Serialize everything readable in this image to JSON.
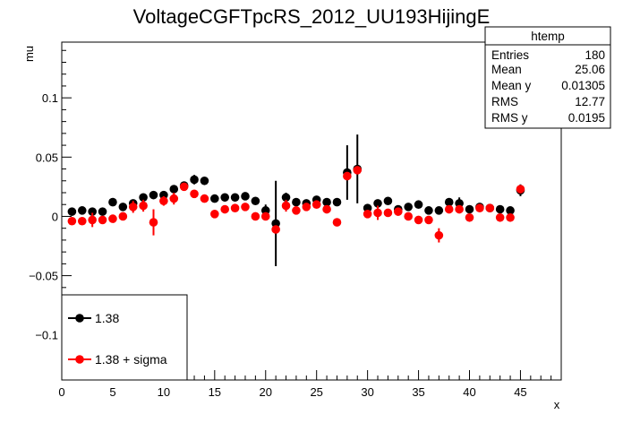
{
  "chart_data": {
    "type": "scatter",
    "title": "VoltageCGFTpcRS_2012_UU193HijingE",
    "xlabel": "x",
    "ylabel": "mu",
    "xlim": [
      0,
      49
    ],
    "ylim": [
      -0.138,
      0.147
    ],
    "x_ticks": [
      0,
      5,
      10,
      15,
      20,
      25,
      30,
      35,
      40,
      45
    ],
    "x_tick_labels": [
      "0",
      "5",
      "10",
      "15",
      "20",
      "25",
      "30",
      "35",
      "40",
      "45"
    ],
    "y_ticks": [
      -0.1,
      -0.05,
      0,
      0.05,
      0.1
    ],
    "y_tick_labels": [
      "−0.1",
      "−0.05",
      "0",
      "0.05",
      "0.1"
    ],
    "grid": false,
    "legend_position": "bottom-left",
    "series": [
      {
        "name": "1.38",
        "color": "#000000",
        "x": [
          1,
          2,
          3,
          4,
          5,
          6,
          7,
          8,
          9,
          10,
          11,
          12,
          13,
          14,
          15,
          16,
          17,
          18,
          19,
          20,
          21,
          22,
          23,
          24,
          25,
          26,
          27,
          28,
          29,
          30,
          31,
          32,
          33,
          34,
          35,
          36,
          37,
          38,
          39,
          40,
          41,
          42,
          43,
          44,
          45
        ],
        "y": [
          0.004,
          0.005,
          0.004,
          0.004,
          0.012,
          0.008,
          0.011,
          0.016,
          0.018,
          0.018,
          0.023,
          0.026,
          0.031,
          0.03,
          0.015,
          0.016,
          0.016,
          0.017,
          0.013,
          0.005,
          -0.006,
          0.016,
          0.012,
          0.011,
          0.014,
          0.012,
          0.012,
          0.037,
          0.04,
          0.007,
          0.011,
          0.013,
          0.006,
          0.008,
          0.01,
          0.005,
          0.005,
          0.012,
          0.011,
          0.006,
          0.008,
          0.007,
          0.006,
          0.005,
          0.022
        ],
        "err": [
          0.003,
          0.003,
          0.003,
          0.003,
          0.003,
          0.003,
          0.003,
          0.003,
          0.003,
          0.003,
          0.003,
          0.003,
          0.004,
          0.003,
          0.003,
          0.003,
          0.003,
          0.003,
          0.003,
          0.005,
          0.036,
          0.004,
          0.003,
          0.003,
          0.003,
          0.003,
          0.003,
          0.023,
          0.029,
          0.003,
          0.003,
          0.003,
          0.003,
          0.003,
          0.003,
          0.003,
          0.003,
          0.003,
          0.005,
          0.003,
          0.003,
          0.003,
          0.003,
          0.003,
          0.005
        ]
      },
      {
        "name": "1.38 + sigma",
        "color": "#ff0000",
        "x": [
          1,
          2,
          3,
          4,
          5,
          6,
          7,
          8,
          9,
          10,
          11,
          12,
          13,
          14,
          15,
          16,
          17,
          18,
          19,
          20,
          21,
          22,
          23,
          24,
          25,
          26,
          27,
          28,
          29,
          30,
          31,
          32,
          33,
          34,
          35,
          36,
          37,
          38,
          39,
          40,
          41,
          42,
          43,
          44,
          45
        ],
        "y": [
          -0.004,
          -0.004,
          -0.003,
          -0.003,
          -0.002,
          0.0,
          0.008,
          0.009,
          -0.005,
          0.013,
          0.015,
          0.025,
          0.019,
          0.015,
          0.002,
          0.006,
          0.007,
          0.008,
          0.0,
          0.0,
          -0.011,
          0.009,
          0.005,
          0.008,
          0.01,
          0.006,
          -0.005,
          0.034,
          0.039,
          0.002,
          0.003,
          0.003,
          0.004,
          0.0,
          -0.003,
          -0.003,
          -0.016,
          0.006,
          0.006,
          -0.001,
          0.007,
          0.007,
          -0.001,
          -0.001,
          0.023
        ],
        "err": [
          0.003,
          0.003,
          0.006,
          0.003,
          0.003,
          0.003,
          0.005,
          0.005,
          0.011,
          0.004,
          0.005,
          0.003,
          0.003,
          0.003,
          0.003,
          0.003,
          0.003,
          0.003,
          0.003,
          0.003,
          0.003,
          0.005,
          0.003,
          0.003,
          0.003,
          0.003,
          0.003,
          0.003,
          0.003,
          0.003,
          0.006,
          0.003,
          0.003,
          0.003,
          0.003,
          0.003,
          0.006,
          0.003,
          0.003,
          0.003,
          0.003,
          0.003,
          0.003,
          0.003,
          0.003
        ]
      }
    ]
  },
  "stats_box": {
    "title": "htemp",
    "rows": [
      {
        "label": "Entries",
        "value": "180"
      },
      {
        "label": "Mean",
        "value": "25.06"
      },
      {
        "label": "Mean y",
        "value": "0.01305"
      },
      {
        "label": "RMS",
        "value": "12.77"
      },
      {
        "label": "RMS y",
        "value": "0.0195"
      }
    ]
  },
  "legend": {
    "entries": [
      {
        "label": "1.38",
        "color": "#000000"
      },
      {
        "label": "1.38 + sigma",
        "color": "#ff0000"
      }
    ]
  }
}
